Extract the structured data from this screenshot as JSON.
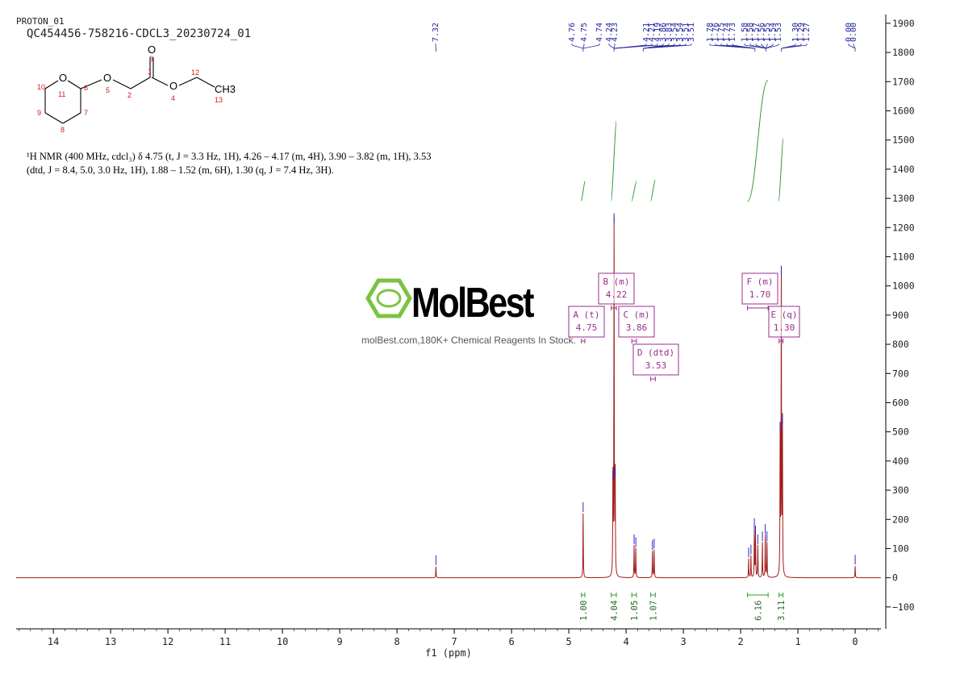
{
  "header": {
    "experiment": "PROTON_01",
    "sample_id": "QC454456-758216-CDCL3_20230724_01"
  },
  "structure": {
    "atoms": [
      {
        "symbol": "O",
        "number": "3"
      },
      {
        "symbol": "O",
        "number": "11"
      },
      {
        "symbol": "O",
        "number": "5"
      },
      {
        "symbol": "O",
        "number": "4"
      },
      {
        "symbol": "CH3",
        "number": "13"
      }
    ],
    "carbon_numbers": [
      "10",
      "6",
      "2",
      "1",
      "12",
      "9",
      "7",
      "8"
    ]
  },
  "nmr_summary": {
    "line1": "¹H NMR (400 MHz, cdcl₃) δ 4.75 (t, J = 3.3 Hz, 1H), 4.26 – 4.17 (m, 4H), 3.90 – 3.82 (m, 1H), 3.53",
    "line2": "(dtd, J = 8.4, 5.0, 3.0 Hz, 1H), 1.88 – 1.52 (m, 6H), 1.30 (q, J = 7.4 Hz, 3H)."
  },
  "watermark": {
    "brand": "MolBest",
    "tagline": "molBest.com,180K+ Chemical Reagents In Stock.",
    "color": "#7cc242"
  },
  "chart_data": {
    "type": "line",
    "xlabel": "f1 (ppm)",
    "ylabel": "",
    "xlim": [
      14.65,
      -0.45
    ],
    "ylim": [
      -175,
      1930
    ],
    "x_reversed": true,
    "x_ticks": [
      14,
      13,
      12,
      11,
      10,
      9,
      8,
      7,
      6,
      5,
      4,
      3,
      2,
      1,
      0
    ],
    "y_ticks": [
      -100,
      0,
      100,
      200,
      300,
      400,
      500,
      600,
      700,
      800,
      900,
      1000,
      1100,
      1200,
      1300,
      1400,
      1500,
      1600,
      1700,
      1800,
      1900
    ],
    "peak_labels": [
      "7.32",
      "4.76",
      "4.75",
      "4.74",
      "4.24",
      "4.23",
      "4.21",
      "4.21",
      "4.19",
      "3.86",
      "3.83",
      "3.54",
      "3.54",
      "3.51",
      "3.51",
      "1.78",
      "1.76",
      "1.75",
      "1.74",
      "1.73",
      "1.58",
      "1.58",
      "1.57",
      "1.56",
      "1.55",
      "1.54",
      "1.53",
      "1.30",
      "1.29",
      "1.27",
      "0.00",
      "0.00"
    ],
    "peaks": [
      {
        "ppm": 7.32,
        "height": 38
      },
      {
        "ppm": 4.75,
        "height": 220
      },
      {
        "ppm": 4.23,
        "height": 330
      },
      {
        "ppm": 4.21,
        "height": 1210
      },
      {
        "ppm": 4.19,
        "height": 340
      },
      {
        "ppm": 3.86,
        "height": 110
      },
      {
        "ppm": 3.83,
        "height": 100
      },
      {
        "ppm": 3.54,
        "height": 90
      },
      {
        "ppm": 3.51,
        "height": 95
      },
      {
        "ppm": 1.86,
        "height": 65
      },
      {
        "ppm": 1.82,
        "height": 75
      },
      {
        "ppm": 1.76,
        "height": 165
      },
      {
        "ppm": 1.74,
        "height": 140
      },
      {
        "ppm": 1.7,
        "height": 110
      },
      {
        "ppm": 1.62,
        "height": 120
      },
      {
        "ppm": 1.57,
        "height": 145
      },
      {
        "ppm": 1.54,
        "height": 120
      },
      {
        "ppm": 1.31,
        "height": 490
      },
      {
        "ppm": 1.29,
        "height": 1030
      },
      {
        "ppm": 1.27,
        "height": 520
      },
      {
        "ppm": 0.0,
        "height": 40
      }
    ],
    "multiplets": [
      {
        "letter": "A",
        "mult": "(t)",
        "shift": "4.75",
        "range": [
          4.78,
          4.72
        ]
      },
      {
        "letter": "B",
        "mult": "(m)",
        "shift": "4.22",
        "range": [
          4.26,
          4.17
        ]
      },
      {
        "letter": "C",
        "mult": "(m)",
        "shift": "3.86",
        "range": [
          3.9,
          3.82
        ]
      },
      {
        "letter": "D",
        "mult": "(dtd)",
        "shift": "3.53",
        "range": [
          3.57,
          3.49
        ]
      },
      {
        "letter": "F",
        "mult": "(m)",
        "shift": "1.70",
        "range": [
          1.88,
          1.52
        ]
      },
      {
        "letter": "E",
        "mult": "(q)",
        "shift": "1.30",
        "range": [
          1.33,
          1.26
        ]
      }
    ],
    "integrals": [
      {
        "value": "1.00",
        "range": [
          4.78,
          4.72
        ],
        "y_start": 1290,
        "y_end": 1360
      },
      {
        "value": "4.04",
        "range": [
          4.26,
          4.17
        ],
        "y_start": 1290,
        "y_end": 1565
      },
      {
        "value": "1.05",
        "range": [
          3.9,
          3.82
        ],
        "y_start": 1290,
        "y_end": 1360
      },
      {
        "value": "1.07",
        "range": [
          3.57,
          3.49
        ],
        "y_start": 1290,
        "y_end": 1365
      },
      {
        "value": "6.16",
        "range": [
          1.88,
          1.52
        ],
        "y_start": 1290,
        "y_end": 1705
      },
      {
        "value": "3.11",
        "range": [
          1.33,
          1.26
        ],
        "y_start": 1290,
        "y_end": 1505
      }
    ],
    "spectrum_color": "#a11c1c",
    "peak_marker_color": "#2828c8",
    "integral_color": "#2f9a2f",
    "label_box_color": "#9b2d8f",
    "axis_color": "#000000"
  }
}
